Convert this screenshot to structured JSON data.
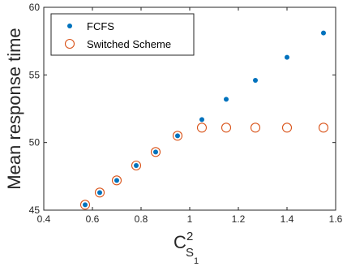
{
  "chart_data": {
    "type": "scatter",
    "xlabel": "C",
    "xlabel_superscript": "2",
    "xlabel_subscript": "S",
    "xlabel_subsubscript": "1",
    "ylabel": "Mean response time",
    "xlim": [
      0.4,
      1.6
    ],
    "ylim": [
      45,
      60
    ],
    "x_ticks": [
      0.4,
      0.6,
      0.8,
      1,
      1.2,
      1.4,
      1.6
    ],
    "x_tick_labels": [
      "0.4",
      "0.6",
      "0.8",
      "1",
      "1.2",
      "1.4",
      "1.6"
    ],
    "y_ticks": [
      45,
      50,
      55,
      60
    ],
    "y_tick_labels": [
      "45",
      "50",
      "55",
      "60"
    ],
    "grid": false,
    "legend_position": "top-left",
    "series": [
      {
        "name": "FCFS",
        "marker": "filled-dot",
        "color": "#0072BD",
        "points": [
          {
            "x": 0.57,
            "y": 45.4
          },
          {
            "x": 0.63,
            "y": 46.3
          },
          {
            "x": 0.7,
            "y": 47.2
          },
          {
            "x": 0.78,
            "y": 48.3
          },
          {
            "x": 0.86,
            "y": 49.3
          },
          {
            "x": 0.95,
            "y": 50.5
          },
          {
            "x": 1.05,
            "y": 51.7
          },
          {
            "x": 1.15,
            "y": 53.2
          },
          {
            "x": 1.27,
            "y": 54.6
          },
          {
            "x": 1.4,
            "y": 56.3
          },
          {
            "x": 1.55,
            "y": 58.1
          }
        ]
      },
      {
        "name": "Switched Scheme",
        "marker": "open-circle",
        "color": "#D95319",
        "points": [
          {
            "x": 0.57,
            "y": 45.4
          },
          {
            "x": 0.63,
            "y": 46.3
          },
          {
            "x": 0.7,
            "y": 47.2
          },
          {
            "x": 0.78,
            "y": 48.3
          },
          {
            "x": 0.86,
            "y": 49.3
          },
          {
            "x": 0.95,
            "y": 50.5
          },
          {
            "x": 1.05,
            "y": 51.1
          },
          {
            "x": 1.15,
            "y": 51.1
          },
          {
            "x": 1.27,
            "y": 51.1
          },
          {
            "x": 1.4,
            "y": 51.1
          },
          {
            "x": 1.55,
            "y": 51.1
          }
        ]
      }
    ]
  }
}
